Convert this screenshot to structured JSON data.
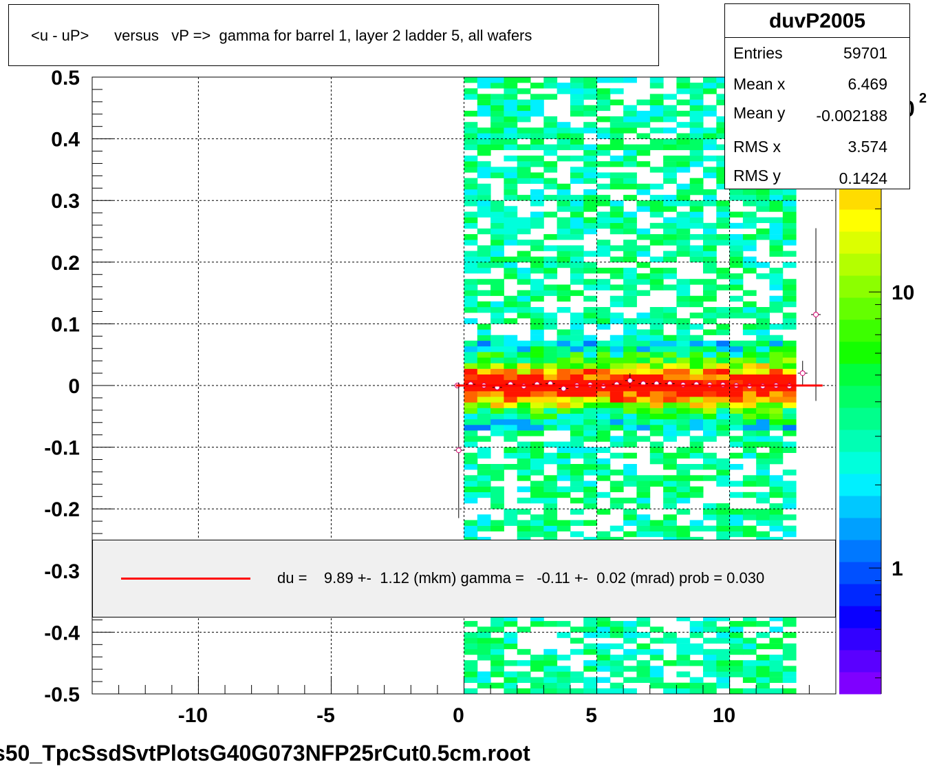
{
  "page_title": "<u - uP>      versus   vP =>  gamma for barrel 1, layer 2 ladder 5, all wafers",
  "stats": {
    "name": "duvP2005",
    "rows": [
      {
        "label": "Entries",
        "value": "59701"
      },
      {
        "label": "Mean x",
        "value": "6.469"
      },
      {
        "label": "Mean y",
        "value": "-0.002188"
      },
      {
        "label": "RMS x",
        "value": "3.574"
      },
      {
        "label": "RMS y",
        "value": "0.1424"
      }
    ]
  },
  "legend": {
    "text": "du =    9.89 +-  1.12 (mkm) gamma =   -0.11 +-  0.02 (mrad) prob = 0.030",
    "line_color": "#ff0000"
  },
  "footer": {
    "filename": "s50_TpcSsdSvtPlotsG40G073NFP25rCut0.5cm.root"
  },
  "chart_data": {
    "type": "heatmap",
    "title": "<u - uP>      versus   vP =>  gamma for barrel 1, layer 2 ladder 5, all wafers",
    "xlabel": "",
    "ylabel": "",
    "xlim": [
      -14,
      14
    ],
    "ylim": [
      -0.5,
      0.5
    ],
    "x_ticks": [
      -10,
      -5,
      0,
      5,
      10
    ],
    "x_tick_labels": [
      "-10",
      "-5",
      "0",
      "5",
      "10"
    ],
    "y_ticks": [
      0.5,
      0.4,
      0.3,
      0.2,
      0.1,
      0,
      -0.1,
      -0.2,
      -0.3,
      -0.4,
      -0.5
    ],
    "y_tick_labels": [
      "0.5",
      "0.4",
      "0.3",
      "0.2",
      "0.1",
      "0",
      "-0.1",
      "-0.2",
      "-0.3",
      "-0.4",
      "-0.5"
    ],
    "grid": true,
    "z_scale": "log",
    "z_tick_labels": [
      {
        "value": 1,
        "label": "1"
      },
      {
        "value": 10,
        "label": "10"
      }
    ],
    "z_partial_label": "0",
    "z_partial_exponent": "2",
    "data_x_range": [
      0,
      12.5
    ],
    "profile_points": [
      {
        "x": -0.25,
        "y": 0.0,
        "err": 0.0
      },
      {
        "x": -0.2,
        "y": -0.105,
        "err": 0.11
      },
      {
        "x": 0.25,
        "y": 0.002,
        "err": 0.004
      },
      {
        "x": 0.75,
        "y": 0.0,
        "err": 0.004
      },
      {
        "x": 1.25,
        "y": -0.003,
        "err": 0.004
      },
      {
        "x": 1.75,
        "y": 0.002,
        "err": 0.004
      },
      {
        "x": 2.25,
        "y": -0.001,
        "err": 0.004
      },
      {
        "x": 2.75,
        "y": 0.002,
        "err": 0.004
      },
      {
        "x": 3.25,
        "y": 0.003,
        "err": 0.004
      },
      {
        "x": 3.75,
        "y": -0.005,
        "err": 0.004
      },
      {
        "x": 4.25,
        "y": 0.0,
        "err": 0.004
      },
      {
        "x": 4.75,
        "y": 0.001,
        "err": 0.004
      },
      {
        "x": 5.25,
        "y": -0.001,
        "err": 0.004
      },
      {
        "x": 5.75,
        "y": 0.002,
        "err": 0.004
      },
      {
        "x": 6.25,
        "y": 0.008,
        "err": 0.012
      },
      {
        "x": 6.75,
        "y": 0.003,
        "err": 0.004
      },
      {
        "x": 7.25,
        "y": 0.003,
        "err": 0.004
      },
      {
        "x": 7.75,
        "y": 0.003,
        "err": 0.004
      },
      {
        "x": 8.25,
        "y": 0.001,
        "err": 0.004
      },
      {
        "x": 8.75,
        "y": 0.002,
        "err": 0.004
      },
      {
        "x": 9.25,
        "y": 0.001,
        "err": 0.004
      },
      {
        "x": 9.75,
        "y": 0.001,
        "err": 0.004
      },
      {
        "x": 10.25,
        "y": 0.0,
        "err": 0.004
      },
      {
        "x": 10.75,
        "y": -0.001,
        "err": 0.004
      },
      {
        "x": 11.25,
        "y": -0.001,
        "err": 0.004
      },
      {
        "x": 11.75,
        "y": 0.0,
        "err": 0.004
      },
      {
        "x": 12.25,
        "y": -0.001,
        "err": 0.005
      },
      {
        "x": 12.75,
        "y": 0.02,
        "err": 0.02
      },
      {
        "x": 13.25,
        "y": 0.115,
        "err": 0.14
      }
    ],
    "fit_line": {
      "x": [
        -0.3,
        13.5
      ],
      "y": [
        0.0,
        0.0
      ],
      "color": "#ff0000"
    },
    "palette": [
      "#7f00ff",
      "#5a00ff",
      "#3200ff",
      "#0a00ff",
      "#0028ff",
      "#0050ff",
      "#0078ff",
      "#00a0ff",
      "#00c8ff",
      "#00f0ff",
      "#00ffdc",
      "#00ffb4",
      "#00ff8c",
      "#00ff64",
      "#00ff3c",
      "#14ff00",
      "#3cff00",
      "#64ff00",
      "#8cff00",
      "#b4ff00",
      "#dcff00",
      "#ffff00",
      "#ffdc00",
      "#ffb400",
      "#ff8c00",
      "#ff6400",
      "#ff3c00",
      "#ff1400"
    ]
  }
}
